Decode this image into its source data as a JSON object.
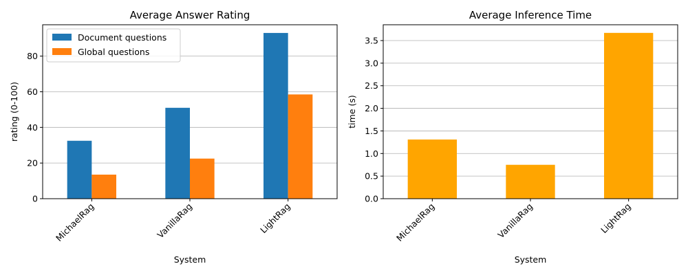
{
  "chart_data": [
    {
      "type": "bar",
      "title": "Average Answer Rating",
      "xlabel": "System",
      "ylabel": "rating (0-100)",
      "categories": [
        "MichaelRag",
        "VanillaRag",
        "LightRag"
      ],
      "series": [
        {
          "name": "Document questions",
          "values": [
            32.5,
            51,
            93
          ],
          "color": "#1f77b4"
        },
        {
          "name": "Global questions",
          "values": [
            13.5,
            22.5,
            58.5
          ],
          "color": "#ff7f0e"
        }
      ],
      "ylim": [
        0,
        97.6
      ],
      "yticks": [
        0,
        20,
        40,
        60,
        80
      ],
      "grid": "y",
      "legend": "top-left"
    },
    {
      "type": "bar",
      "title": "Average Inference Time",
      "xlabel": "System",
      "ylabel": "time (s)",
      "categories": [
        "MichaelRag",
        "VanillaRag",
        "LightRag"
      ],
      "series": [
        {
          "name": "",
          "values": [
            1.31,
            0.75,
            3.67
          ],
          "color": "#ffa500"
        }
      ],
      "ylim": [
        0,
        3.85
      ],
      "yticks": [
        "0.0",
        "0.5",
        "1.0",
        "1.5",
        "2.0",
        "2.5",
        "3.0",
        "3.5"
      ],
      "grid": "y",
      "legend": "none"
    }
  ]
}
